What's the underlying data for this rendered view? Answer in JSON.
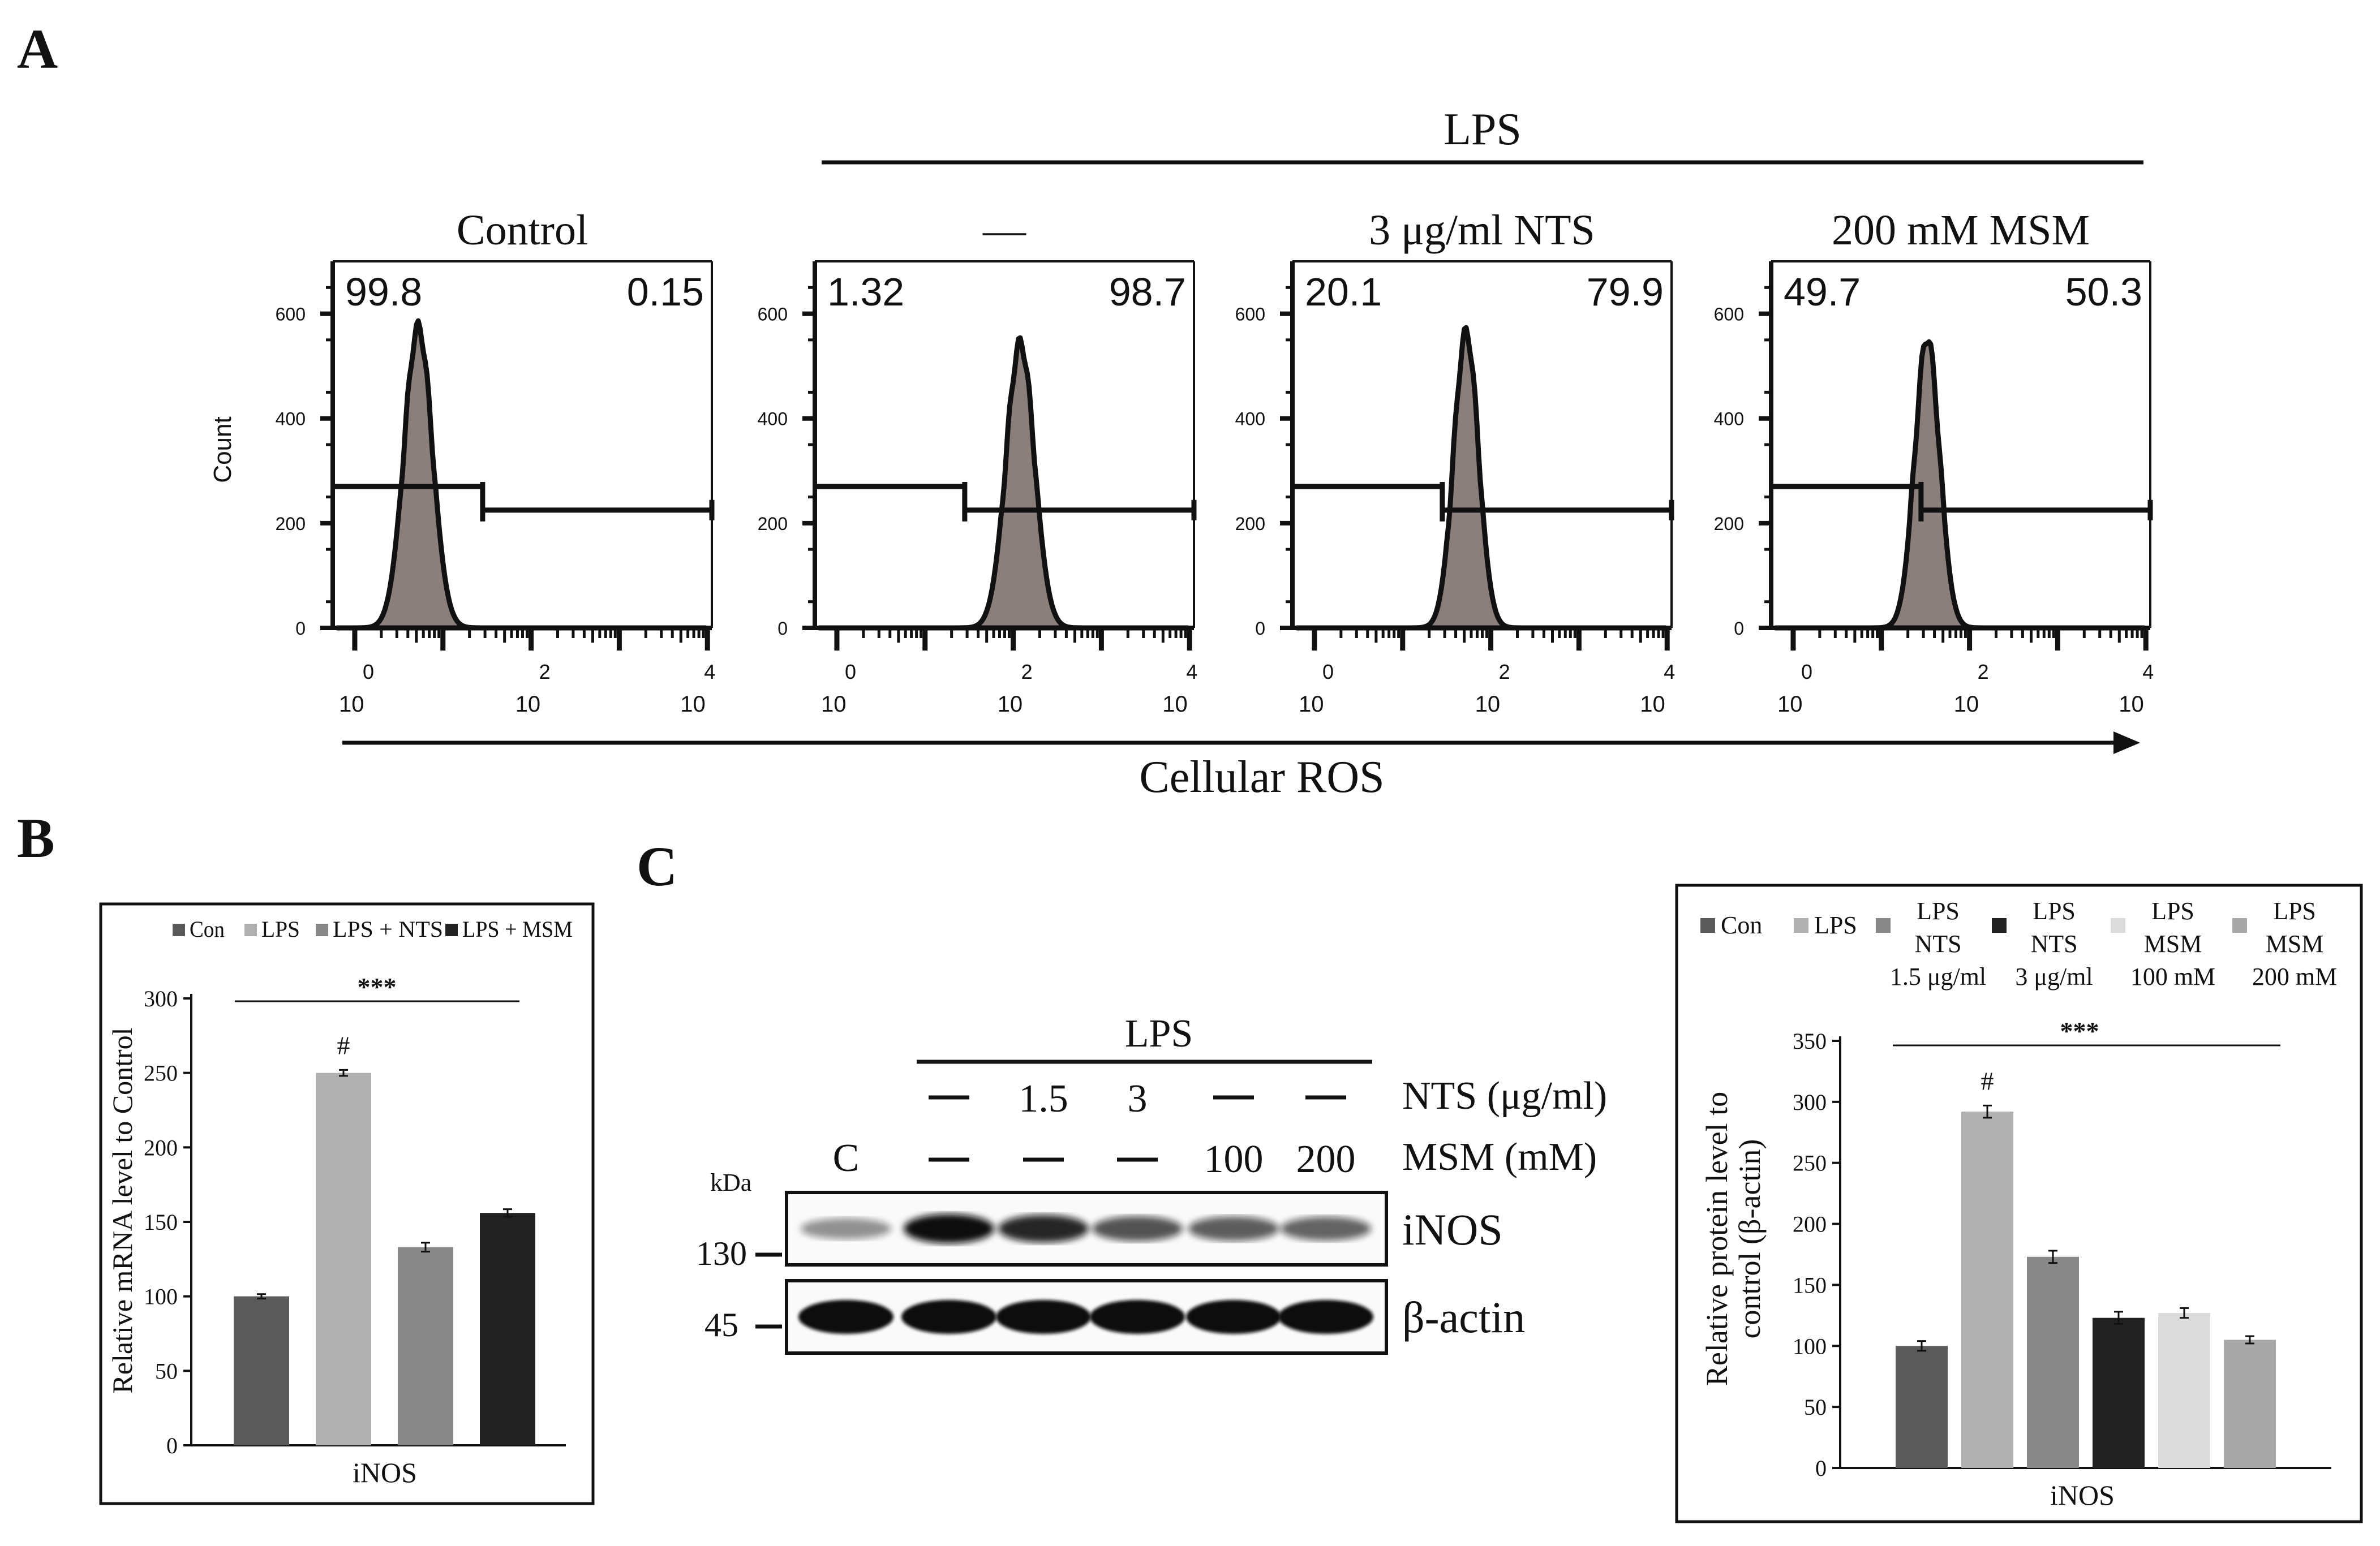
{
  "panel_labels": {
    "a": "A",
    "b": "B",
    "c": "C"
  },
  "panel_a": {
    "lps_label": "LPS",
    "x_axis_label": "Cellular ROS",
    "y_axis_label": "Count",
    "y_ticks": [
      "0",
      "200",
      "400",
      "600"
    ],
    "x_tick_base": "10",
    "x_tick_exponents": [
      "0",
      "2",
      "4"
    ],
    "plots": [
      {
        "title": "Control",
        "left_pct": "99.8",
        "right_pct": "0.15",
        "peak_log": 0.72,
        "peak_count": 575,
        "sigma": 0.16
      },
      {
        "title": "—",
        "left_pct": "1.32",
        "right_pct": "98.7",
        "peak_log": 2.08,
        "peak_count": 545,
        "sigma": 0.16
      },
      {
        "title": "3 μg/ml NTS",
        "left_pct": "20.1",
        "right_pct": "79.9",
        "peak_log": 1.72,
        "peak_count": 565,
        "sigma": 0.14
      },
      {
        "title": "200 mM MSM",
        "left_pct": "49.7",
        "right_pct": "50.3",
        "peak_log": 1.52,
        "peak_count": 555,
        "sigma": 0.14
      }
    ],
    "gate_low_count": 270,
    "gate_high_count": 225,
    "gate_split_log": 1.45
  },
  "chart_data": [
    {
      "id": "panel-b",
      "type": "bar",
      "title": "",
      "xlabel": "iNOS",
      "ylabel": "Relative mRNA level to Control",
      "ylim": [
        0,
        300
      ],
      "yticks": [
        "0",
        "50",
        "100",
        "150",
        "200",
        "250",
        "300"
      ],
      "categories": [
        "Con",
        "LPS",
        "LPS + NTS",
        "LPS + MSM"
      ],
      "values": [
        100,
        250,
        133,
        156
      ],
      "errors": [
        1.5,
        2,
        3,
        2.5
      ],
      "colors": [
        "#5a5a5a",
        "#b0b0b0",
        "#888888",
        "#222222"
      ],
      "hash_label": "#",
      "significance": "***"
    },
    {
      "id": "panel-c",
      "type": "bar",
      "title": "",
      "xlabel": "iNOS",
      "ylabel": "Relative protein level to control (β-actin)",
      "ylabel_lines": [
        "Relative protein level to",
        "control (β-actin)"
      ],
      "ylim": [
        0,
        350
      ],
      "yticks": [
        "0",
        "50",
        "100",
        "150",
        "200",
        "250",
        "300",
        "350"
      ],
      "categories": [
        "Con",
        "LPS",
        "LPS NTS 1.5 μg/ml",
        "LPS NTS 3 μg/ml",
        "LPS MSM 100 mM",
        "LPS MSM 200 mM"
      ],
      "legend": [
        [
          "Con"
        ],
        [
          "LPS"
        ],
        [
          "LPS",
          "NTS",
          "1.5 μg/ml"
        ],
        [
          "LPS",
          "NTS",
          "3 μg/ml"
        ],
        [
          "LPS",
          "MSM",
          "100 mM"
        ],
        [
          "LPS",
          "MSM",
          "200 mM"
        ]
      ],
      "values": [
        100,
        292,
        173,
        123,
        127,
        105
      ],
      "errors": [
        4,
        5,
        5,
        5,
        4,
        3
      ],
      "colors": [
        "#5a5a5a",
        "#b0b0b0",
        "#888888",
        "#222222",
        "#dcdcdc",
        "#a8a8a8"
      ],
      "hash_label": "#",
      "significance": "***"
    }
  ],
  "blot": {
    "lps_label": "LPS",
    "kda_label": "kDa",
    "lane_c": "C",
    "dash": "—",
    "nts_row": [
      "—",
      "1.5",
      "3",
      "—",
      "—"
    ],
    "msm_row": [
      "—",
      "—",
      "—",
      "100",
      "200"
    ],
    "nts_label": "NTS (μg/ml)",
    "msm_label": "MSM (mM)",
    "marker_130": "130",
    "marker_45": "45",
    "inos_label": "iNOS",
    "actin_label": "β-actin",
    "inos_band_intensity": [
      0.25,
      1.0,
      0.85,
      0.6,
      0.55,
      0.5
    ]
  }
}
